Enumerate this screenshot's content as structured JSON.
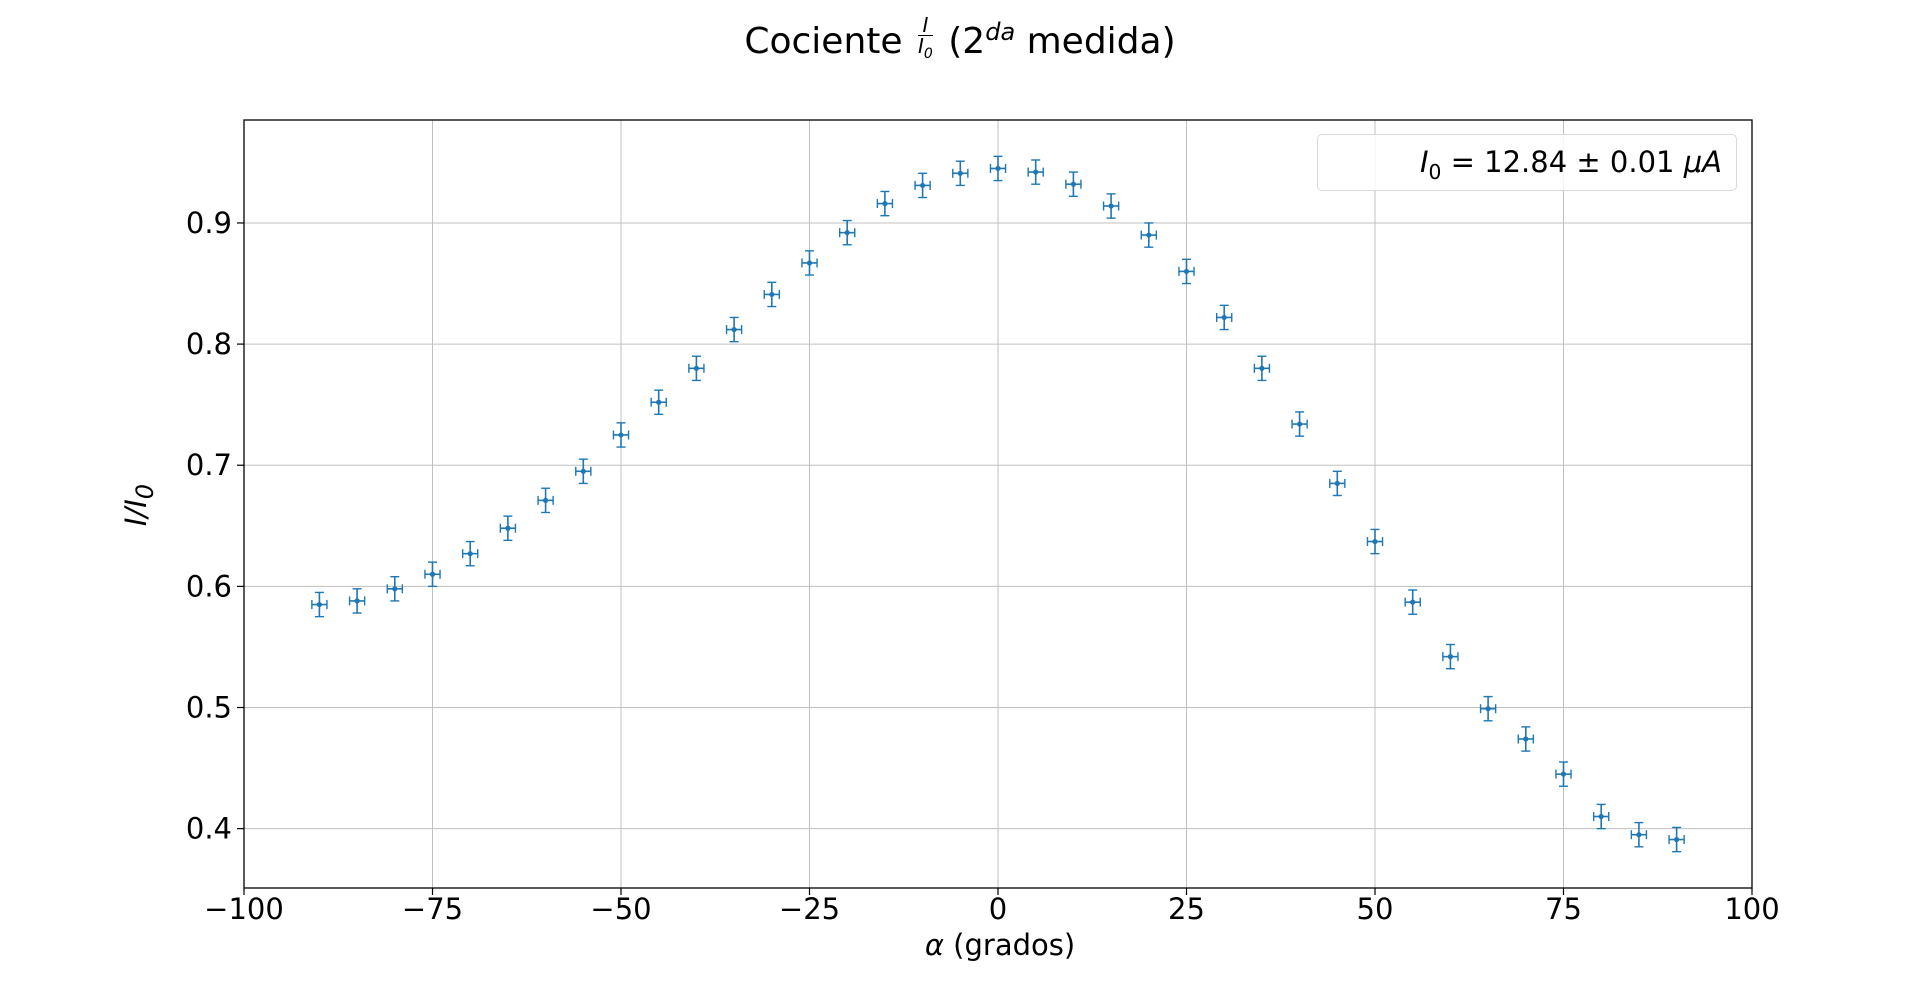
{
  "chart_data": {
    "type": "scatter",
    "title": {
      "prefix": "Cociente ",
      "frac_num": "I",
      "frac_den_main": "I",
      "frac_den_sub": "0",
      "mid": " (2",
      "sup": "da",
      "suffix": " medida)"
    },
    "xlabel": {
      "symbol": "α",
      "text": " (grados)"
    },
    "ylabel": {
      "main": "I/I",
      "sub": "0"
    },
    "xlim": [
      -100,
      100
    ],
    "ylim": [
      0.351,
      0.985
    ],
    "xticks": [
      -100,
      -75,
      -50,
      -25,
      0,
      25,
      50,
      75,
      100
    ],
    "xtick_labels": [
      "−100",
      "−75",
      "−50",
      "−25",
      "0",
      "25",
      "50",
      "75",
      "100"
    ],
    "yticks": [
      0.4,
      0.5,
      0.6,
      0.7,
      0.8,
      0.9
    ],
    "ytick_labels": [
      "0.4",
      "0.5",
      "0.6",
      "0.7",
      "0.8",
      "0.9"
    ],
    "grid": true,
    "legend_placement": "top-right",
    "legend": {
      "main": "I",
      "sub": "0",
      "rest": " = 12.84 ± 0.01 ",
      "unit": "μA"
    },
    "color": "#1f77b4",
    "x_error": 1,
    "y_error": 0.01,
    "x": [
      -90,
      -85,
      -80,
      -75,
      -70,
      -65,
      -60,
      -55,
      -50,
      -45,
      -40,
      -35,
      -30,
      -25,
      -20,
      -15,
      -10,
      -5,
      0,
      5,
      10,
      15,
      20,
      25,
      30,
      35,
      40,
      45,
      50,
      55,
      60,
      65,
      70,
      75,
      80,
      85,
      90
    ],
    "y": [
      0.585,
      0.588,
      0.598,
      0.61,
      0.627,
      0.648,
      0.671,
      0.695,
      0.725,
      0.752,
      0.78,
      0.812,
      0.841,
      0.867,
      0.892,
      0.916,
      0.931,
      0.941,
      0.945,
      0.942,
      0.932,
      0.914,
      0.89,
      0.86,
      0.822,
      0.78,
      0.734,
      0.685,
      0.637,
      0.587,
      0.542,
      0.499,
      0.474,
      0.445,
      0.41,
      0.395,
      0.391
    ]
  }
}
